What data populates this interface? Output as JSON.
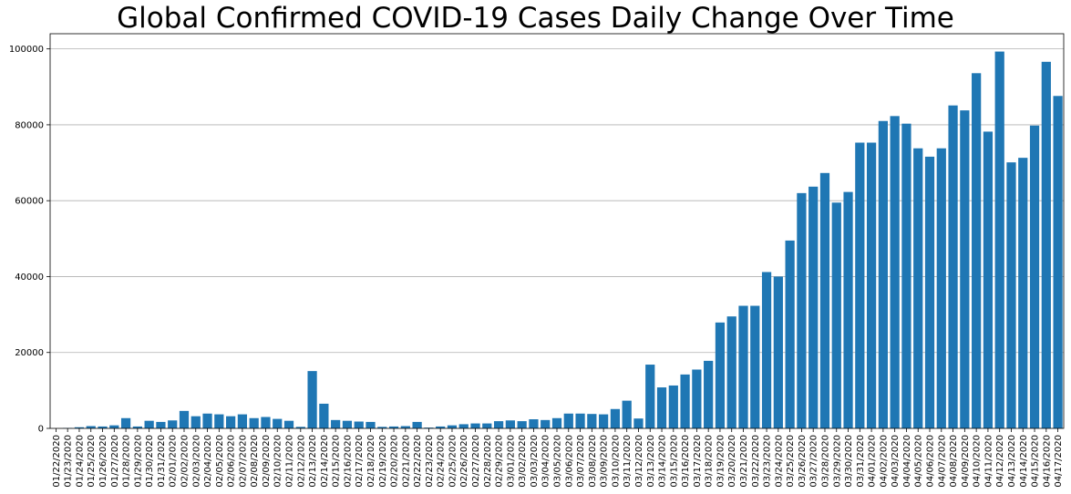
{
  "chart_data": {
    "type": "bar",
    "title": "Global Confirmed COVID-19 Cases Daily Change Over Time",
    "xlabel": "",
    "ylabel": "",
    "ylim": [
      0,
      104000
    ],
    "yticks": [
      0,
      20000,
      40000,
      60000,
      80000,
      100000
    ],
    "ytick_labels": [
      "0",
      "20000",
      "40000",
      "60000",
      "80000",
      "100000"
    ],
    "grid": "horizontal",
    "legend": "none",
    "bar_color": "#1f77b4",
    "categories": [
      "01/22/2020",
      "01/23/2020",
      "01/24/2020",
      "01/25/2020",
      "01/26/2020",
      "01/27/2020",
      "01/28/2020",
      "01/29/2020",
      "01/30/2020",
      "01/31/2020",
      "02/01/2020",
      "02/02/2020",
      "02/03/2020",
      "02/04/2020",
      "02/05/2020",
      "02/06/2020",
      "02/07/2020",
      "02/08/2020",
      "02/09/2020",
      "02/10/2020",
      "02/11/2020",
      "02/12/2020",
      "02/13/2020",
      "02/14/2020",
      "02/15/2020",
      "02/16/2020",
      "02/17/2020",
      "02/18/2020",
      "02/19/2020",
      "02/20/2020",
      "02/21/2020",
      "02/22/2020",
      "02/23/2020",
      "02/24/2020",
      "02/25/2020",
      "02/26/2020",
      "02/27/2020",
      "02/28/2020",
      "02/29/2020",
      "03/01/2020",
      "03/02/2020",
      "03/03/2020",
      "03/04/2020",
      "03/05/2020",
      "03/06/2020",
      "03/07/2020",
      "03/08/2020",
      "03/09/2020",
      "03/10/2020",
      "03/11/2020",
      "03/12/2020",
      "03/13/2020",
      "03/14/2020",
      "03/15/2020",
      "03/16/2020",
      "03/17/2020",
      "03/18/2020",
      "03/19/2020",
      "03/20/2020",
      "03/21/2020",
      "03/22/2020",
      "03/23/2020",
      "03/24/2020",
      "03/25/2020",
      "03/26/2020",
      "03/27/2020",
      "03/28/2020",
      "03/29/2020",
      "03/30/2020",
      "03/31/2020",
      "04/01/2020",
      "04/02/2020",
      "04/03/2020",
      "04/04/2020",
      "04/05/2020",
      "04/06/2020",
      "04/07/2020",
      "04/08/2020",
      "04/09/2020",
      "04/10/2020",
      "04/11/2020",
      "04/12/2020",
      "04/13/2020",
      "04/14/2020",
      "04/15/2020",
      "04/16/2020",
      "04/17/2020"
    ],
    "values": [
      0,
      100,
      300,
      600,
      500,
      800,
      2700,
      500,
      2000,
      1700,
      2100,
      4600,
      3200,
      3900,
      3700,
      3200,
      3700,
      2700,
      3000,
      2500,
      2000,
      400,
      15100,
      6500,
      2200,
      2000,
      1800,
      1700,
      400,
      500,
      600,
      1700,
      200,
      500,
      800,
      1100,
      1300,
      1300,
      1900,
      2100,
      1900,
      2400,
      2200,
      2700,
      3900,
      3900,
      3800,
      3700,
      5100,
      7300,
      2600,
      16800,
      10800,
      11300,
      14200,
      15500,
      17800,
      27900,
      29500,
      32300,
      32300,
      41200,
      40000,
      49500,
      62000,
      63700,
      67300,
      59500,
      62300,
      75300,
      75300,
      81000,
      82300,
      80300,
      73800,
      71600,
      73800,
      85100,
      83800,
      93600,
      78200,
      99300,
      70100,
      71300,
      79800,
      96600,
      87600
    ]
  }
}
